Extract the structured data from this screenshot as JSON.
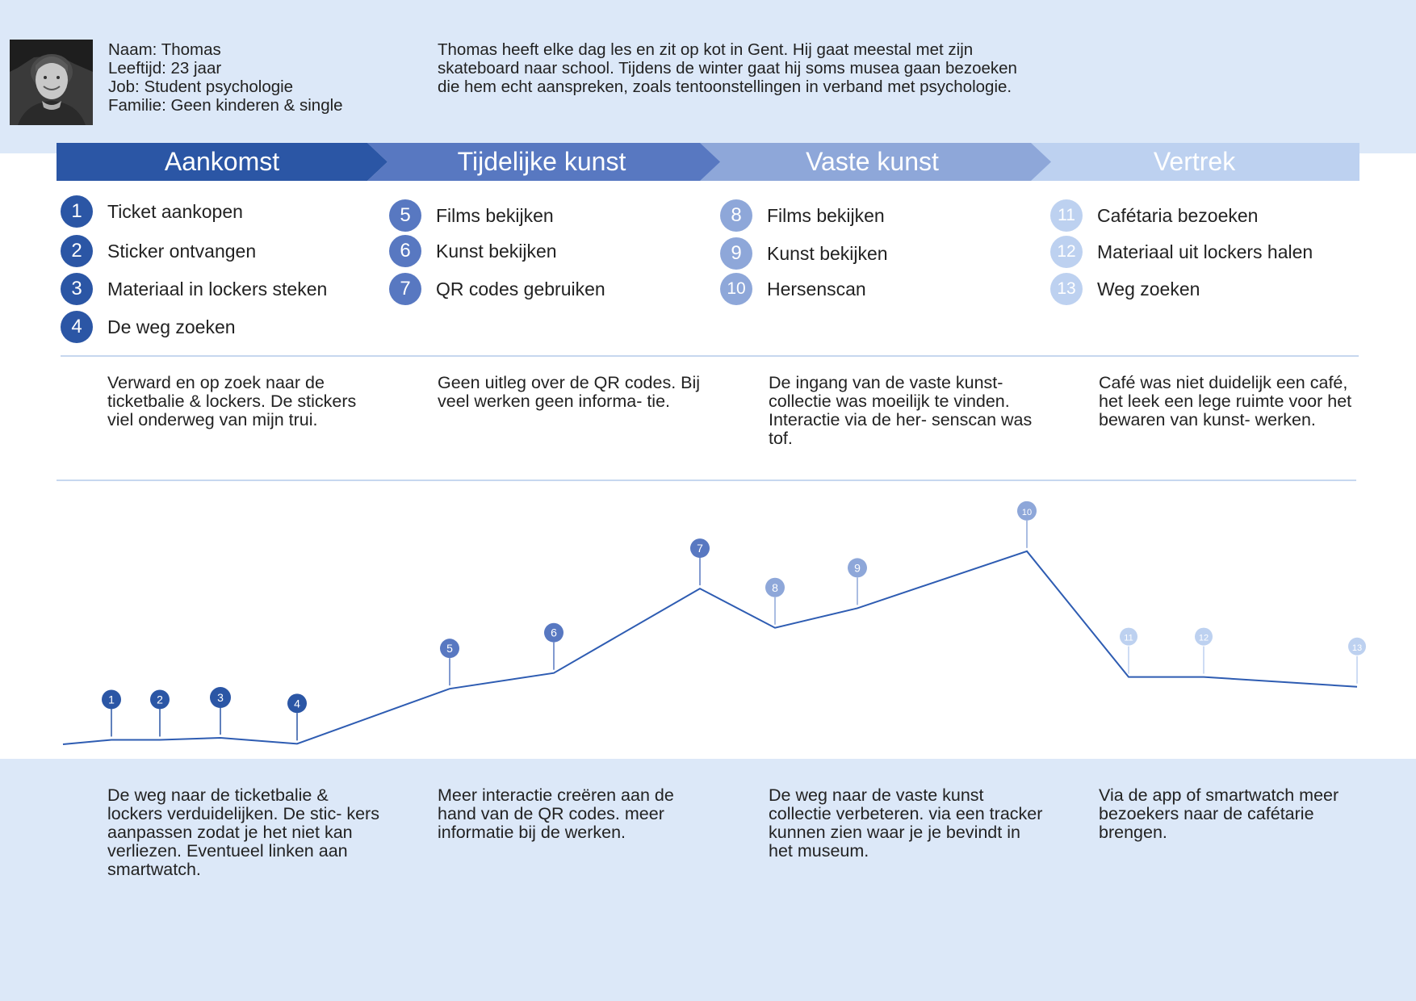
{
  "persona": {
    "name": "Naam: Thomas",
    "age": "Leeftijd: 23 jaar",
    "job": "Job: Student psychologie",
    "family": "Familie: Geen kinderen & single",
    "bio": "Thomas heeft elke dag les en zit op kot in Gent. Hij gaat meestal met zijn skateboard naar school. Tijdens de winter gaat hij soms musea gaan bezoeken die hem echt aanspreken, zoals tentoonstellingen in verband met psychologie."
  },
  "colors": {
    "phase1": "#2b56a5",
    "phase2": "#5878c1",
    "phase3": "#8ea7d9",
    "phase4": "#bdd1f0",
    "band": "#dce8f8",
    "rule": "#c6d7ef",
    "line": "#2e5cb2"
  },
  "phases": [
    {
      "title": "Aankomst",
      "steps": [
        {
          "num": "1",
          "label": "Ticket aankopen"
        },
        {
          "num": "2",
          "label": "Sticker ontvangen"
        },
        {
          "num": "3",
          "label": "Materiaal in lockers steken"
        },
        {
          "num": "4",
          "label": "De weg zoeken"
        }
      ],
      "experience": "Verward en op zoek naar de ticketbalie & lockers. De stickers viel onderweg van mijn trui.",
      "improvement": "De weg naar de ticketbalie & lockers verduidelijken. De stic- kers aanpassen zodat je het niet kan verliezen. Eventueel linken aan smartwatch."
    },
    {
      "title": "Tijdelijke kunst",
      "steps": [
        {
          "num": "5",
          "label": "Films bekijken"
        },
        {
          "num": "6",
          "label": "Kunst bekijken"
        },
        {
          "num": "7",
          "label": "QR codes gebruiken"
        }
      ],
      "experience": "Geen uitleg over de QR codes. Bij veel werken geen informa- tie.",
      "improvement": "Meer interactie creëren aan de hand van de QR codes. meer informatie bij de werken."
    },
    {
      "title": "Vaste kunst",
      "steps": [
        {
          "num": "8",
          "label": "Films bekijken"
        },
        {
          "num": "9",
          "label": "Kunst bekijken"
        },
        {
          "num": "10",
          "label": "Hersenscan"
        }
      ],
      "experience": "De ingang van de vaste kunst- collectie was moeilijk te vinden. Interactie via de her- senscan was tof.",
      "improvement": "De weg naar de vaste kunst collectie verbeteren. via een tracker kunnen zien waar je je bevindt in het museum."
    },
    {
      "title": "Vertrek",
      "steps": [
        {
          "num": "11",
          "label": "Cafétaria bezoeken"
        },
        {
          "num": "12",
          "label": "Materiaal uit lockers halen"
        },
        {
          "num": "13",
          "label": "Weg zoeken"
        }
      ],
      "experience": "Café was niet duidelijk een café, het leek een lege ruimte voor het bewaren van kunst- werken.",
      "improvement": "Via de app of smartwatch meer bezoekers naar de cafétarie brengen."
    }
  ],
  "chart_data": {
    "type": "line",
    "x": [
      "1",
      "2",
      "3",
      "4",
      "5",
      "6",
      "7",
      "8",
      "9",
      "10",
      "11",
      "12",
      "13"
    ],
    "values": [
      2.1,
      2.1,
      2.3,
      1.7,
      7.3,
      8.9,
      17.5,
      13.5,
      15.5,
      21.3,
      8.5,
      8.5,
      7.5
    ],
    "ylim": [
      0,
      24
    ]
  }
}
